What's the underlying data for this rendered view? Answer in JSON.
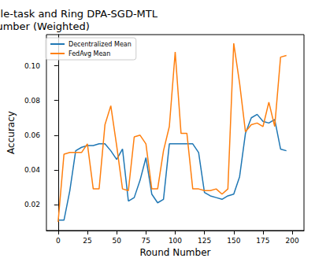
{
  "chart_data": {
    "type": "line",
    "title": "Accuracy for FedAvg Single-task and Ring DPA-SGD-MTL\nvs Round Number (Weighted)",
    "x_label": "Round Number",
    "y_label": "Accuracy",
    "x": [
      0,
      5,
      10,
      15,
      20,
      25,
      30,
      35,
      40,
      45,
      50,
      55,
      60,
      65,
      70,
      75,
      80,
      85,
      90,
      95,
      100,
      105,
      110,
      115,
      120,
      125,
      130,
      135,
      140,
      145,
      150,
      155,
      160,
      165,
      170,
      175,
      180,
      185,
      190,
      195
    ],
    "series": [
      {
        "name": "Decentralized Mean",
        "color": "#1f77b4",
        "values": [
          0.011,
          0.011,
          0.028,
          0.051,
          0.053,
          0.054,
          0.054,
          0.055,
          0.055,
          0.051,
          0.046,
          0.052,
          0.022,
          0.024,
          0.034,
          0.047,
          0.026,
          0.021,
          0.023,
          0.055,
          0.055,
          0.055,
          0.055,
          0.055,
          0.05,
          0.027,
          0.025,
          0.024,
          0.023,
          0.025,
          0.026,
          0.036,
          0.061,
          0.07,
          0.072,
          0.068,
          0.067,
          0.069,
          0.052,
          0.051
        ]
      },
      {
        "name": "FedAvg Mean",
        "color": "#ff7f0e",
        "values": [
          0.01,
          0.049,
          0.05,
          0.05,
          0.05,
          0.055,
          0.029,
          0.029,
          0.066,
          0.077,
          0.054,
          0.029,
          0.028,
          0.059,
          0.06,
          0.055,
          0.029,
          0.029,
          0.051,
          0.065,
          0.108,
          0.061,
          0.061,
          0.029,
          0.029,
          0.028,
          0.028,
          0.029,
          0.026,
          0.029,
          0.113,
          0.09,
          0.062,
          0.066,
          0.067,
          0.065,
          0.079,
          0.065,
          0.105,
          0.106
        ]
      }
    ],
    "xlim": [
      -10,
      210
    ],
    "xticks": [
      0,
      25,
      50,
      75,
      100,
      125,
      150,
      175,
      200
    ],
    "ylim": [
      0.005,
      0.118
    ],
    "yticks": [
      0.02,
      0.04,
      0.06,
      0.08,
      {
        "value": 0.1,
        "label": "0.10"
      }
    ],
    "grid": false,
    "legend": "upper left"
  }
}
